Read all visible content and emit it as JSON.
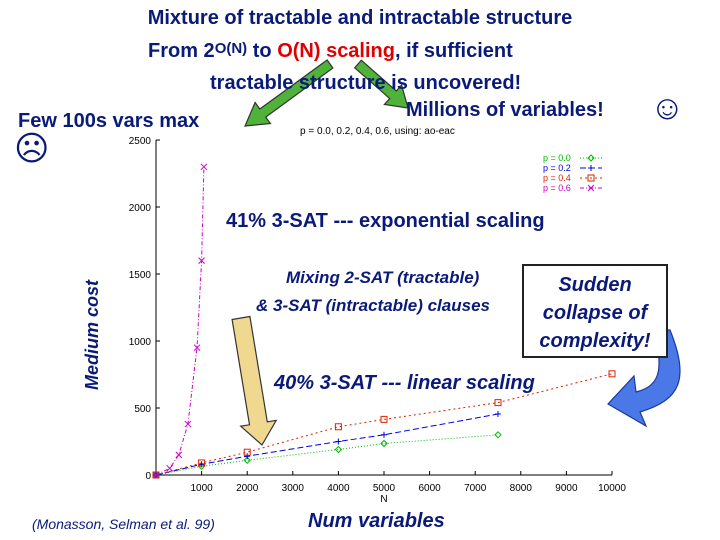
{
  "slide": {
    "title_line1": "Mixture of tractable and intractable structure",
    "title_line2_prefix": "From 2",
    "title_line2_exponent": "O(N)",
    "title_line2_mid": " to ",
    "title_line2_highlight": "O(N) scaling",
    "title_line2_suffix": ", if sufficient",
    "title_line3": "tractable structure is uncovered!",
    "few_vars": "Few 100s vars max",
    "millions": "Millions of variables!",
    "smile_glyph": "☺",
    "frown_glyph": "☹",
    "exp_note": "41% 3-SAT --- exponential scaling",
    "mix_line1": "Mixing 2-SAT (tractable)",
    "mix_line2": "& 3-SAT (intractable) clauses",
    "callout_lines": [
      "Sudden",
      "collapse of",
      "complexity!"
    ],
    "linear_note": "40% 3-SAT --- linear scaling",
    "citation": "(Monasson, Selman et al. 99)",
    "accent_red": "#e00000",
    "navy": "#0a1a78",
    "arrow_green": "#4fb33a",
    "arrow_gold": "#f0d890",
    "arrow_blue": "#4a78e6"
  },
  "chart_data": {
    "type": "line",
    "title": "p = 0.0, 0.2, 0.4, 0.6, using: ao-eac",
    "xlabel": "Num variables",
    "x_axis_letter": "N",
    "ylabel": "Medium cost",
    "xlim": [
      0,
      10000
    ],
    "ylim": [
      0,
      2500
    ],
    "xticks": [
      1000,
      2000,
      3000,
      4000,
      5000,
      6000,
      7000,
      8000,
      9000,
      10000
    ],
    "yticks": [
      0,
      500,
      1000,
      1500,
      2000,
      2500
    ],
    "grid": false,
    "legend_position": "top-right",
    "series": [
      {
        "name": "p = 0.0",
        "color": "#00bb00",
        "marker": "diamond",
        "x": [
          0,
          1000,
          2000,
          4000,
          5000,
          7500
        ],
        "y": [
          0,
          65,
          110,
          190,
          235,
          300
        ]
      },
      {
        "name": "p = 0.2",
        "color": "#0000dd",
        "marker": "plus",
        "x": [
          0,
          1000,
          2000,
          4000,
          5000,
          7500
        ],
        "y": [
          0,
          80,
          140,
          250,
          300,
          455
        ]
      },
      {
        "name": "p = 0.4",
        "color": "#dd2200",
        "marker": "square",
        "x": [
          0,
          1000,
          2000,
          4000,
          5000,
          7500,
          10000
        ],
        "y": [
          0,
          90,
          170,
          360,
          415,
          540,
          755
        ]
      },
      {
        "name": "p = 0.6",
        "color": "#cc00cc",
        "marker": "x",
        "x": [
          0,
          300,
          500,
          700,
          900,
          1000,
          1050
        ],
        "y": [
          0,
          50,
          150,
          380,
          950,
          1600,
          2300
        ]
      }
    ]
  }
}
